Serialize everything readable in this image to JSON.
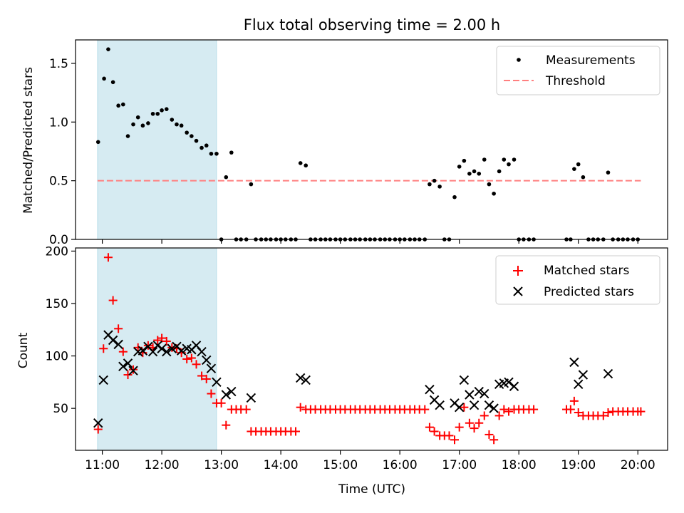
{
  "chart_data": [
    {
      "type": "scatter",
      "title": "Flux total observing time = 2.00 h",
      "xlabel": "",
      "ylabel": "Matched/Predicted stars",
      "x_unit": "hours UTC",
      "xlim": [
        10.55,
        20.5
      ],
      "ylim": [
        0,
        1.7
      ],
      "yticks": [
        0.0,
        0.5,
        1.0,
        1.5
      ],
      "ytick_labels": [
        "0.0",
        "0.5",
        "1.0",
        "1.5"
      ],
      "xticks": [
        11,
        12,
        13,
        14,
        15,
        16,
        17,
        18,
        19,
        20
      ],
      "highlight_span": [
        10.92,
        12.92
      ],
      "highlight_color": "#add8e6",
      "legend_position": "upper right",
      "threshold": {
        "name": "Threshold",
        "y": 0.5,
        "x_range": [
          10.92,
          20.05
        ],
        "color": "#ff7f7f"
      },
      "series": [
        {
          "name": "Measurements",
          "color": "#000000",
          "marker": "dot",
          "points": [
            [
              10.93,
              0.83
            ],
            [
              11.03,
              1.37
            ],
            [
              11.1,
              1.62
            ],
            [
              11.18,
              1.34
            ],
            [
              11.27,
              1.14
            ],
            [
              11.35,
              1.15
            ],
            [
              11.43,
              0.88
            ],
            [
              11.52,
              0.98
            ],
            [
              11.6,
              1.04
            ],
            [
              11.68,
              0.97
            ],
            [
              11.77,
              0.99
            ],
            [
              11.85,
              1.07
            ],
            [
              11.93,
              1.07
            ],
            [
              12.0,
              1.1
            ],
            [
              12.08,
              1.11
            ],
            [
              12.17,
              1.02
            ],
            [
              12.25,
              0.98
            ],
            [
              12.33,
              0.97
            ],
            [
              12.42,
              0.91
            ],
            [
              12.5,
              0.88
            ],
            [
              12.58,
              0.84
            ],
            [
              12.67,
              0.78
            ],
            [
              12.75,
              0.8
            ],
            [
              12.83,
              0.73
            ],
            [
              12.92,
              0.73
            ],
            [
              13.0,
              0.0
            ],
            [
              13.08,
              0.53
            ],
            [
              13.17,
              0.74
            ],
            [
              13.25,
              0.0
            ],
            [
              13.33,
              0.0
            ],
            [
              13.42,
              0.0
            ],
            [
              13.5,
              0.47
            ],
            [
              13.58,
              0.0
            ],
            [
              13.67,
              0.0
            ],
            [
              13.75,
              0.0
            ],
            [
              13.83,
              0.0
            ],
            [
              13.92,
              0.0
            ],
            [
              14.0,
              0.0
            ],
            [
              14.08,
              0.0
            ],
            [
              14.17,
              0.0
            ],
            [
              14.25,
              0.0
            ],
            [
              14.33,
              0.65
            ],
            [
              14.42,
              0.63
            ],
            [
              14.5,
              0.0
            ],
            [
              14.58,
              0.0
            ],
            [
              14.67,
              0.0
            ],
            [
              14.75,
              0.0
            ],
            [
              14.83,
              0.0
            ],
            [
              14.92,
              0.0
            ],
            [
              15.0,
              0.0
            ],
            [
              15.08,
              0.0
            ],
            [
              15.17,
              0.0
            ],
            [
              15.25,
              0.0
            ],
            [
              15.33,
              0.0
            ],
            [
              15.42,
              0.0
            ],
            [
              15.5,
              0.0
            ],
            [
              15.58,
              0.0
            ],
            [
              15.67,
              0.0
            ],
            [
              15.75,
              0.0
            ],
            [
              15.83,
              0.0
            ],
            [
              15.92,
              0.0
            ],
            [
              16.0,
              0.0
            ],
            [
              16.08,
              0.0
            ],
            [
              16.17,
              0.0
            ],
            [
              16.25,
              0.0
            ],
            [
              16.33,
              0.0
            ],
            [
              16.42,
              0.0
            ],
            [
              16.5,
              0.47
            ],
            [
              16.58,
              0.5
            ],
            [
              16.67,
              0.45
            ],
            [
              16.75,
              0.0
            ],
            [
              16.83,
              0.0
            ],
            [
              16.92,
              0.36
            ],
            [
              17.0,
              0.62
            ],
            [
              17.08,
              0.67
            ],
            [
              17.17,
              0.56
            ],
            [
              17.25,
              0.58
            ],
            [
              17.33,
              0.56
            ],
            [
              17.42,
              0.68
            ],
            [
              17.5,
              0.47
            ],
            [
              17.58,
              0.39
            ],
            [
              17.67,
              0.58
            ],
            [
              17.75,
              0.68
            ],
            [
              17.83,
              0.64
            ],
            [
              17.92,
              0.68
            ],
            [
              18.0,
              0.0
            ],
            [
              18.08,
              0.0
            ],
            [
              18.17,
              0.0
            ],
            [
              18.25,
              0.0
            ],
            [
              18.8,
              0.0
            ],
            [
              18.87,
              0.0
            ],
            [
              18.93,
              0.6
            ],
            [
              19.0,
              0.64
            ],
            [
              19.08,
              0.53
            ],
            [
              19.17,
              0.0
            ],
            [
              19.25,
              0.0
            ],
            [
              19.33,
              0.0
            ],
            [
              19.42,
              0.0
            ],
            [
              19.5,
              0.57
            ],
            [
              19.58,
              0.0
            ],
            [
              19.67,
              0.0
            ],
            [
              19.75,
              0.0
            ],
            [
              19.83,
              0.0
            ],
            [
              19.92,
              0.0
            ],
            [
              20.0,
              0.0
            ]
          ]
        }
      ]
    },
    {
      "type": "scatter",
      "title": "",
      "xlabel": "Time (UTC)",
      "ylabel": "Count",
      "x_unit": "hours UTC",
      "xlim": [
        10.55,
        20.5
      ],
      "ylim": [
        10,
        203
      ],
      "yticks": [
        50,
        100,
        150,
        200
      ],
      "ytick_labels": [
        "50",
        "100",
        "150",
        "200"
      ],
      "xticks": [
        11,
        12,
        13,
        14,
        15,
        16,
        17,
        18,
        19,
        20
      ],
      "xtick_labels": [
        "11:00",
        "12:00",
        "13:00",
        "14:00",
        "15:00",
        "16:00",
        "17:00",
        "18:00",
        "19:00",
        "20:00"
      ],
      "highlight_span": [
        10.92,
        12.92
      ],
      "highlight_color": "#add8e6",
      "legend_position": "upper right",
      "series": [
        {
          "name": "Matched stars",
          "color": "#ff0000",
          "marker": "plus",
          "points": [
            [
              10.93,
              30
            ],
            [
              11.02,
              107
            ],
            [
              11.1,
              194
            ],
            [
              11.18,
              153
            ],
            [
              11.27,
              126
            ],
            [
              11.35,
              104
            ],
            [
              11.43,
              82
            ],
            [
              11.52,
              87
            ],
            [
              11.6,
              108
            ],
            [
              11.68,
              103
            ],
            [
              11.77,
              110
            ],
            [
              11.85,
              108
            ],
            [
              11.93,
              115
            ],
            [
              12.0,
              117
            ],
            [
              12.08,
              114
            ],
            [
              12.17,
              108
            ],
            [
              12.25,
              107
            ],
            [
              12.33,
              103
            ],
            [
              12.42,
              97
            ],
            [
              12.5,
              98
            ],
            [
              12.58,
              92
            ],
            [
              12.67,
              81
            ],
            [
              12.75,
              78
            ],
            [
              12.83,
              64
            ],
            [
              12.92,
              55
            ],
            [
              13.0,
              55
            ],
            [
              13.08,
              34
            ],
            [
              13.17,
              49
            ],
            [
              13.25,
              49
            ],
            [
              13.33,
              49
            ],
            [
              13.42,
              49
            ],
            [
              13.5,
              28
            ],
            [
              13.58,
              28
            ],
            [
              13.67,
              28
            ],
            [
              13.75,
              28
            ],
            [
              13.83,
              28
            ],
            [
              13.92,
              28
            ],
            [
              14.0,
              28
            ],
            [
              14.08,
              28
            ],
            [
              14.17,
              28
            ],
            [
              14.25,
              28
            ],
            [
              14.33,
              51
            ],
            [
              14.42,
              49
            ],
            [
              14.5,
              49
            ],
            [
              14.58,
              49
            ],
            [
              14.67,
              49
            ],
            [
              14.75,
              49
            ],
            [
              14.83,
              49
            ],
            [
              14.92,
              49
            ],
            [
              15.0,
              49
            ],
            [
              15.08,
              49
            ],
            [
              15.17,
              49
            ],
            [
              15.25,
              49
            ],
            [
              15.33,
              49
            ],
            [
              15.42,
              49
            ],
            [
              15.5,
              49
            ],
            [
              15.58,
              49
            ],
            [
              15.67,
              49
            ],
            [
              15.75,
              49
            ],
            [
              15.83,
              49
            ],
            [
              15.92,
              49
            ],
            [
              16.0,
              49
            ],
            [
              16.08,
              49
            ],
            [
              16.17,
              49
            ],
            [
              16.25,
              49
            ],
            [
              16.33,
              49
            ],
            [
              16.42,
              49
            ],
            [
              16.5,
              32
            ],
            [
              16.58,
              28
            ],
            [
              16.67,
              24
            ],
            [
              16.75,
              24
            ],
            [
              16.83,
              24
            ],
            [
              16.92,
              20
            ],
            [
              17.0,
              32
            ],
            [
              17.08,
              51
            ],
            [
              17.17,
              36
            ],
            [
              17.25,
              31
            ],
            [
              17.33,
              36
            ],
            [
              17.42,
              43
            ],
            [
              17.5,
              25
            ],
            [
              17.58,
              20
            ],
            [
              17.67,
              43
            ],
            [
              17.75,
              49
            ],
            [
              17.83,
              47
            ],
            [
              17.92,
              49
            ],
            [
              18.0,
              49
            ],
            [
              18.08,
              49
            ],
            [
              18.17,
              49
            ],
            [
              18.25,
              49
            ],
            [
              18.8,
              49
            ],
            [
              18.87,
              49
            ],
            [
              18.93,
              57
            ],
            [
              19.0,
              46
            ],
            [
              19.08,
              43
            ],
            [
              19.17,
              43
            ],
            [
              19.25,
              43
            ],
            [
              19.33,
              43
            ],
            [
              19.42,
              43
            ],
            [
              19.5,
              46
            ],
            [
              19.58,
              47
            ],
            [
              19.67,
              47
            ],
            [
              19.75,
              47
            ],
            [
              19.83,
              47
            ],
            [
              19.92,
              47
            ],
            [
              20.0,
              47
            ],
            [
              20.05,
              47
            ]
          ]
        },
        {
          "name": "Predicted stars",
          "color": "#000000",
          "marker": "x",
          "points": [
            [
              10.93,
              36
            ],
            [
              11.02,
              77
            ],
            [
              11.1,
              120
            ],
            [
              11.18,
              115
            ],
            [
              11.27,
              111
            ],
            [
              11.35,
              90
            ],
            [
              11.43,
              93
            ],
            [
              11.52,
              86
            ],
            [
              11.6,
              104
            ],
            [
              11.68,
              105
            ],
            [
              11.77,
              109
            ],
            [
              11.85,
              104
            ],
            [
              11.93,
              110
            ],
            [
              12.0,
              107
            ],
            [
              12.08,
              104
            ],
            [
              12.17,
              107
            ],
            [
              12.25,
              109
            ],
            [
              12.33,
              105
            ],
            [
              12.42,
              107
            ],
            [
              12.5,
              106
            ],
            [
              12.58,
              110
            ],
            [
              12.67,
              104
            ],
            [
              12.75,
              96
            ],
            [
              12.83,
              88
            ],
            [
              12.92,
              75
            ],
            [
              13.08,
              63
            ],
            [
              13.17,
              66
            ],
            [
              13.5,
              60
            ],
            [
              14.33,
              79
            ],
            [
              14.42,
              77
            ],
            [
              16.5,
              68
            ],
            [
              16.58,
              58
            ],
            [
              16.67,
              53
            ],
            [
              16.92,
              55
            ],
            [
              17.0,
              51
            ],
            [
              17.08,
              77
            ],
            [
              17.17,
              63
            ],
            [
              17.25,
              53
            ],
            [
              17.33,
              66
            ],
            [
              17.42,
              64
            ],
            [
              17.5,
              53
            ],
            [
              17.58,
              50
            ],
            [
              17.67,
              73
            ],
            [
              17.75,
              74
            ],
            [
              17.83,
              75
            ],
            [
              17.92,
              71
            ],
            [
              18.93,
              94
            ],
            [
              19.0,
              73
            ],
            [
              19.08,
              82
            ],
            [
              19.5,
              83
            ]
          ]
        }
      ]
    }
  ]
}
